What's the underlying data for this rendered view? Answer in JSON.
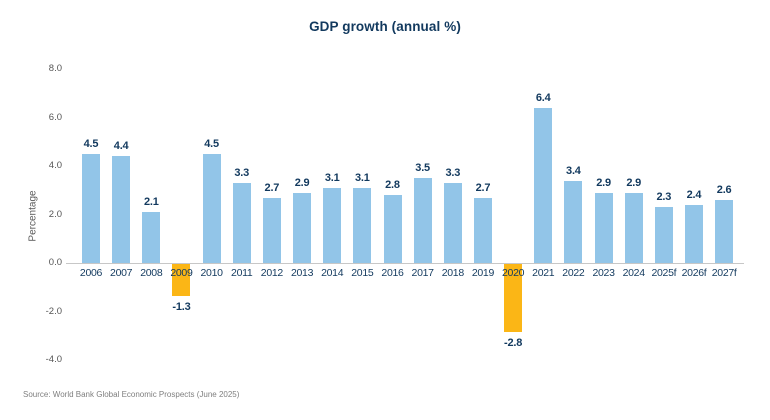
{
  "chart_data": {
    "type": "bar",
    "title": "GDP growth (annual %)",
    "xlabel": "",
    "ylabel": "Percentage",
    "categories": [
      "2006",
      "2007",
      "2008",
      "2009",
      "2010",
      "2011",
      "2012",
      "2013",
      "2014",
      "2015",
      "2016",
      "2017",
      "2018",
      "2019",
      "2020",
      "2021",
      "2022",
      "2023",
      "2024",
      "2025f",
      "2026f",
      "2027f"
    ],
    "values": [
      4.5,
      4.4,
      2.1,
      -1.3,
      4.5,
      3.3,
      2.7,
      2.9,
      3.1,
      3.1,
      2.8,
      3.5,
      3.3,
      2.7,
      -2.8,
      6.4,
      3.4,
      2.9,
      2.9,
      2.3,
      2.4,
      2.6
    ],
    "value_labels": [
      "4.5",
      "4.4",
      "2.1",
      "-1.3",
      "4.5",
      "3.3",
      "2.7",
      "2.9",
      "3.1",
      "3.1",
      "2.8",
      "3.5",
      "3.3",
      "2.7",
      "-2.8",
      "6.4",
      "3.4",
      "2.9",
      "2.9",
      "2.3",
      "2.4",
      "2.6"
    ],
    "ylim": [
      -4.0,
      8.0
    ],
    "yticks": [
      8.0,
      6.0,
      4.0,
      2.0,
      0.0,
      -2.0,
      -4.0
    ],
    "ytick_labels": [
      "8.0",
      "6.0",
      "4.0",
      "2.0",
      "0.0",
      "-2.0",
      "-4.0"
    ],
    "grid": false,
    "legend": "none",
    "colors": {
      "positive_bar": "#92C5E8",
      "negative_bar": "#FBB616",
      "label_text": "#12395E",
      "axis_text": "#595959",
      "axis_line": "#C7C7C7",
      "source_text": "#7F7F7F"
    }
  },
  "source": {
    "text": "Source: World Bank Global Economic Prospects (June 2025)"
  }
}
